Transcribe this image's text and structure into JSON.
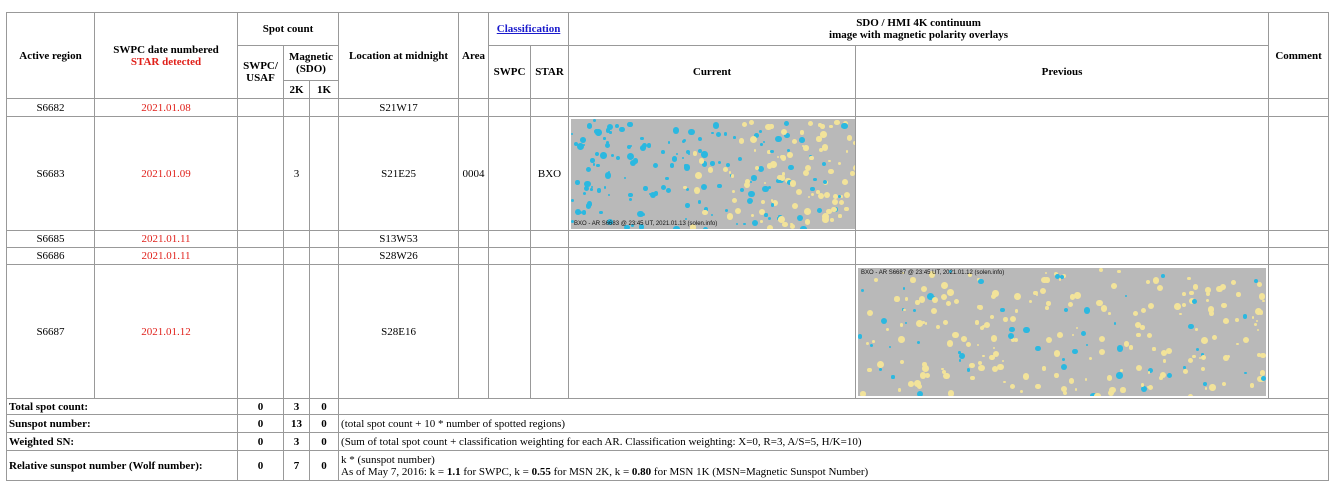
{
  "header": {
    "active_region": "Active region",
    "date_line1": "SWPC date numbered",
    "date_line2": "STAR detected",
    "spot_count": "Spot count",
    "swpc_usaf": "SWPC/ USAF",
    "magnetic": "Magnetic (SDO)",
    "k2": "2K",
    "k1": "1K",
    "location": "Location at midnight",
    "area": "Area",
    "classification": "Classification",
    "class_swpc": "SWPC",
    "class_star": "STAR",
    "image_line1": "SDO / HMI 4K continuum",
    "image_line2": "image with magnetic polarity overlays",
    "current": "Current",
    "previous": "Previous",
    "comment": "Comment"
  },
  "rows": [
    {
      "region": "S6682",
      "date": "2021.01.08",
      "location": "S21W17"
    },
    {
      "region": "S6683",
      "date": "2021.01.09",
      "mag_2k": "3",
      "location": "S21E25",
      "area": "0004",
      "star_class": "BXO",
      "current_caption": "BXO - AR S6683 @ 23:45 UT, 2021.01.13 (solen.info)"
    },
    {
      "region": "S6685",
      "date": "2021.01.11",
      "location": "S13W53"
    },
    {
      "region": "S6686",
      "date": "2021.01.11",
      "location": "S28W26"
    },
    {
      "region": "S6687",
      "date": "2021.01.12",
      "location": "S28E16",
      "previous_caption": "BXO - AR S6687 @ 23:45 UT, 2021.01.12 (solen.info)"
    }
  ],
  "summary": [
    {
      "label": "Total spot count:",
      "swpc": "0",
      "k2": "3",
      "k1": "0"
    },
    {
      "label": "Sunspot number:",
      "swpc": "0",
      "k2": "13",
      "k1": "0",
      "note": [
        "(total spot count + 10 * number of spotted regions)"
      ]
    },
    {
      "label": "Weighted SN:",
      "swpc": "0",
      "k2": "3",
      "k1": "0",
      "note": [
        "(Sum of total spot count + classification weighting for each AR. Classification weighting: X=0, R=3, A/S=5, H/K=10)"
      ]
    },
    {
      "label": "Relative sunspot number (Wolf number):",
      "swpc": "0",
      "k2": "7",
      "k1": "0",
      "note": [
        "k * (sunspot number)"
      ],
      "note2": [
        "As of May 7, 2016: k = ",
        "1.1",
        " for SWPC, k = ",
        "0.55",
        " for MSN 2K, k = ",
        "0.80",
        " for MSN 1K (MSN=Magnetic Sunspot Number)"
      ]
    }
  ]
}
